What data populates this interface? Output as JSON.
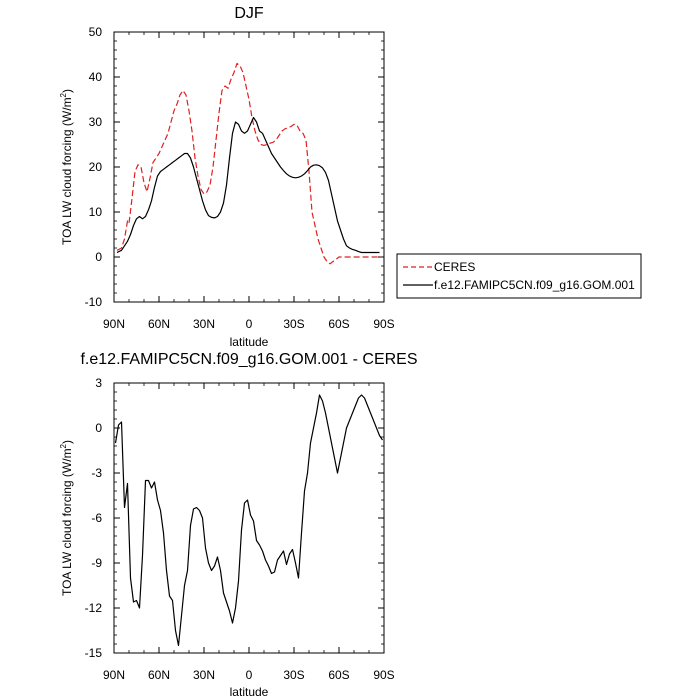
{
  "chart_data": [
    {
      "type": "line",
      "title": "DJF",
      "xlabel": "latitude",
      "ylabel": "TOA LW cloud forcing (W/m",
      "ylabel_sup": "2",
      "ylabel_end": ")",
      "xlim": [
        90,
        -90
      ],
      "ylim": [
        -10,
        50
      ],
      "xticks": [
        90,
        60,
        30,
        0,
        -30,
        -60,
        -90
      ],
      "xtick_labels": [
        "90N",
        "60N",
        "30N",
        "0",
        "30S",
        "60S",
        "90S"
      ],
      "yticks": [
        -10,
        0,
        10,
        20,
        30,
        40,
        50
      ],
      "ytick_labels": [
        "-10",
        "0",
        "10",
        "20",
        "30",
        "40",
        "50"
      ],
      "legend": {
        "position": "right",
        "entries": [
          "CERES",
          "f.e12.FAMIPC5CN.f09_g16.GOM.001"
        ]
      },
      "series": [
        {
          "name": "CERES",
          "color": "#e02020",
          "dash": "dashed",
          "x": [
            88,
            85,
            83,
            81,
            80,
            78,
            76,
            74,
            72,
            70,
            68,
            66,
            64,
            62,
            60,
            58,
            56,
            54,
            52,
            50,
            48,
            46,
            44,
            42,
            40,
            38,
            36,
            34,
            32,
            30,
            28,
            26,
            24,
            22,
            20,
            18,
            16,
            14,
            12,
            10,
            8,
            6,
            4,
            2,
            0,
            -2,
            -4,
            -6,
            -8,
            -10,
            -12,
            -14,
            -16,
            -18,
            -20,
            -22,
            -24,
            -26,
            -28,
            -30,
            -32,
            -34,
            -36,
            -38,
            -40,
            -42,
            -44,
            -46,
            -48,
            -50,
            -52,
            -54,
            -56,
            -58,
            -60,
            -62,
            -64,
            -66,
            -68,
            -70,
            -72,
            -74,
            -76,
            -78,
            -80,
            -82,
            -84,
            -86,
            -88
          ],
          "y": [
            1.5,
            2,
            4,
            8,
            7.5,
            13,
            19,
            20.5,
            20,
            16.5,
            14.5,
            17.5,
            21,
            22,
            23,
            24.5,
            26,
            27.5,
            30,
            32.5,
            34,
            36,
            37,
            36,
            32.5,
            28,
            22,
            18,
            15,
            14,
            14.5,
            16,
            20,
            26,
            32,
            37,
            38,
            37.5,
            39.5,
            41,
            43,
            42.5,
            41,
            38,
            35,
            31,
            28,
            26,
            25,
            24.8,
            25,
            25.3,
            25.5,
            26,
            27,
            28,
            28.5,
            28.7,
            29,
            29.5,
            29.3,
            28,
            27.5,
            26,
            19,
            10,
            7,
            4,
            2,
            0,
            -1,
            -1.5,
            -1,
            -0.5,
            0,
            0,
            0,
            0,
            0,
            0,
            0,
            0,
            0,
            0,
            0,
            0,
            0,
            0,
            0
          ]
        },
        {
          "name": "f.e12.FAMIPC5CN.f09_g16.GOM.001",
          "color": "#000000",
          "dash": "solid",
          "x": [
            88,
            85,
            83,
            81,
            79,
            77,
            75,
            73,
            71,
            69,
            67,
            65,
            63,
            61,
            59,
            57,
            55,
            53,
            51,
            49,
            47,
            45,
            43,
            41,
            39,
            37,
            35,
            33,
            31,
            29,
            27,
            25,
            23,
            21,
            19,
            17,
            15,
            13,
            11,
            9,
            7,
            5,
            3,
            1,
            -1,
            -3,
            -5,
            -7,
            -9,
            -11,
            -13,
            -15,
            -17,
            -19,
            -21,
            -23,
            -25,
            -27,
            -29,
            -31,
            -33,
            -35,
            -37,
            -39,
            -41,
            -43,
            -45,
            -47,
            -49,
            -51,
            -53,
            -55,
            -57,
            -59,
            -61,
            -63,
            -65,
            -67,
            -69,
            -71,
            -73,
            -75,
            -77,
            -79,
            -81,
            -83,
            -85,
            -87
          ],
          "y": [
            1,
            1.5,
            2.5,
            3.5,
            5,
            7,
            8.5,
            9,
            8.5,
            9,
            10.5,
            12.5,
            15.5,
            18,
            19,
            19.5,
            20,
            20.5,
            21,
            21.5,
            22,
            22.5,
            23,
            23,
            22,
            20,
            17.5,
            15,
            12.5,
            10.5,
            9.2,
            8.8,
            8.7,
            9,
            10,
            12,
            16,
            22,
            27.5,
            30,
            29.5,
            28,
            27.5,
            28,
            29.5,
            31,
            30,
            28,
            27.5,
            26,
            24.5,
            23,
            22,
            21,
            20,
            19.2,
            18.5,
            18,
            17.7,
            17.6,
            17.7,
            18,
            18.5,
            19.2,
            20,
            20.4,
            20.5,
            20.3,
            19.8,
            18.8,
            17,
            14,
            11,
            8,
            6,
            4,
            2.5,
            2,
            1.7,
            1.5,
            1.2,
            1,
            1,
            1,
            1,
            1,
            1,
            1
          ]
        }
      ]
    },
    {
      "type": "line",
      "title": "f.e12.FAMIPC5CN.f09_g16.GOM.001 - CERES",
      "xlabel": "latitude",
      "ylabel": "TOA LW cloud forcing (W/m",
      "ylabel_sup": "2",
      "ylabel_end": ")",
      "xlim": [
        90,
        -90
      ],
      "ylim": [
        -15,
        3
      ],
      "xticks": [
        90,
        60,
        30,
        0,
        -30,
        -60,
        -90
      ],
      "xtick_labels": [
        "90N",
        "60N",
        "30N",
        "0",
        "30S",
        "60S",
        "90S"
      ],
      "yticks": [
        -15,
        -12,
        -9,
        -6,
        -3,
        0,
        3
      ],
      "ytick_labels": [
        "-15",
        "-12",
        "-9",
        "-6",
        "-3",
        "0",
        "3"
      ],
      "series": [
        {
          "name": "f.e12.FAMIPC5CN.f09_g16.GOM.001 - CERES",
          "color": "#000000",
          "dash": "solid",
          "x": [
            89,
            87,
            85,
            83,
            81,
            79,
            77,
            75,
            73,
            71,
            69,
            67,
            65,
            63,
            61,
            59,
            57,
            55,
            53,
            51,
            49,
            47,
            45,
            43,
            41,
            39,
            37,
            35,
            33,
            31,
            29,
            27,
            25,
            23,
            21,
            19,
            17,
            15,
            13,
            11,
            9,
            7,
            5,
            3,
            1,
            -1,
            -3,
            -5,
            -7,
            -9,
            -11,
            -13,
            -15,
            -17,
            -19,
            -21,
            -23,
            -25,
            -27,
            -29,
            -31,
            -33,
            -35,
            -37,
            -39,
            -41,
            -43,
            -45,
            -47,
            -49,
            -51,
            -53,
            -55,
            -57,
            -59,
            -61,
            -63,
            -65,
            -67,
            -69,
            -71,
            -73,
            -75,
            -77,
            -79,
            -81,
            -83,
            -85,
            -87,
            -89
          ],
          "y": [
            -1,
            0.2,
            0.4,
            -5.3,
            -3.7,
            -10,
            -11.6,
            -11.5,
            -12,
            -8.5,
            -3.5,
            -3.5,
            -4,
            -3.6,
            -4.8,
            -5.5,
            -7,
            -9.5,
            -11.2,
            -11.5,
            -13.5,
            -14.5,
            -12.5,
            -10.5,
            -9.5,
            -6.5,
            -5.4,
            -5.3,
            -5.5,
            -6,
            -8,
            -9,
            -9.5,
            -9.2,
            -8.6,
            -9.5,
            -11,
            -11.6,
            -12.2,
            -13,
            -12,
            -10.2,
            -6.8,
            -5,
            -4.8,
            -5.8,
            -6.2,
            -7.5,
            -7.8,
            -8.2,
            -8.8,
            -9.2,
            -9.7,
            -9.6,
            -8.8,
            -8.5,
            -8.2,
            -9.1,
            -8.4,
            -8.1,
            -9,
            -10,
            -7,
            -4.2,
            -3,
            -1,
            0,
            1,
            2.2,
            1.8,
            1,
            0,
            -1,
            -2,
            -3,
            -2,
            -1,
            0,
            0.5,
            1,
            1.5,
            2,
            2.2,
            2,
            1.5,
            1,
            0.5,
            0,
            -0.5,
            -0.8
          ]
        }
      ]
    }
  ]
}
